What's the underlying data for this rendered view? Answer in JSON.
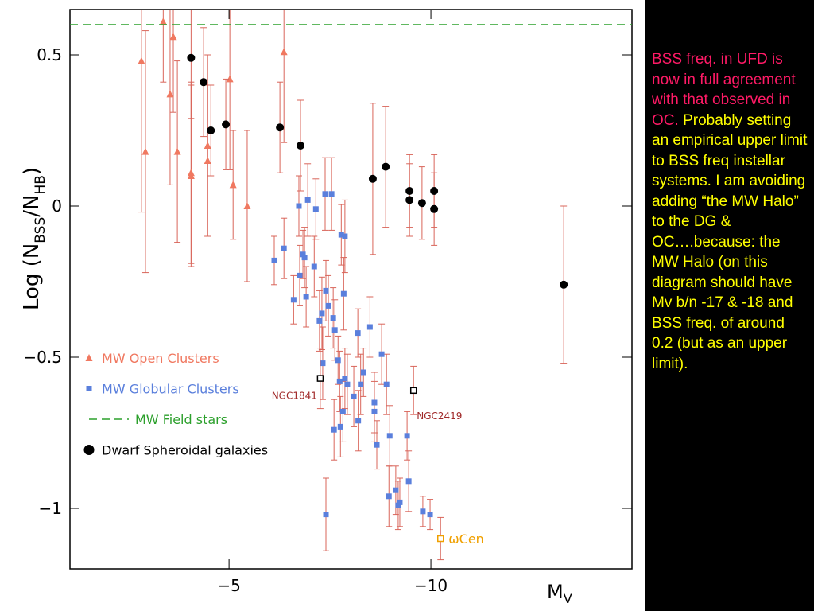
{
  "chart_data": {
    "type": "scatter",
    "xlabel": [
      "M",
      "V"
    ],
    "ylabel": [
      "Log  (N",
      "BSS",
      "/N",
      "HB",
      ")"
    ],
    "xlim": [
      -1.06,
      -14.98
    ],
    "ylim": [
      -1.2,
      0.65
    ],
    "xticks": [
      {
        "value": -5,
        "label": "−5"
      },
      {
        "value": -10,
        "label": "−10"
      }
    ],
    "yticks": [
      {
        "value": 0.5,
        "label": "0.5"
      },
      0,
      {
        "value": -0.5,
        "label": "−0.5"
      },
      {
        "value": -1,
        "label": "−1"
      }
    ],
    "legend": "lower left",
    "error_color": "#d9655a",
    "series": [
      {
        "name": "MW Open Clusters",
        "color": "#f07860",
        "marker": "triangle",
        "x": [
          -2.83,
          -2.93,
          -3.37,
          -3.62,
          -3.54,
          -3.72,
          -4.06,
          -4.06,
          -4.47,
          -4.47,
          -5.02,
          -5.1,
          -5.45,
          -6.36
        ],
        "values": [
          0.48,
          0.18,
          0.61,
          0.56,
          0.37,
          0.18,
          0.11,
          0.1,
          0.2,
          0.15,
          0.42,
          0.07,
          0.0,
          0.51
        ],
        "errors": [
          0.5,
          0.4,
          0.2,
          0.25,
          0.3,
          0.3,
          0.3,
          0.3,
          0.3,
          0.25,
          0.3,
          0.18,
          0.25,
          0.3
        ]
      },
      {
        "name": "MW Globular Clusters",
        "color": "#5a7fdc",
        "marker": "square",
        "x": [
          -6.12,
          -6.36,
          -6.6,
          -6.73,
          -6.75,
          -6.83,
          -6.87,
          -6.91,
          -6.95,
          -7.11,
          -7.15,
          -7.24,
          -7.3,
          -7.32,
          -7.38,
          -7.4,
          -7.46,
          -7.54,
          -7.58,
          -7.6,
          -7.62,
          -7.7,
          -7.74,
          -7.76,
          -7.78,
          -7.82,
          -7.84,
          -7.87,
          -7.87,
          -7.93,
          -7.4,
          -8.09,
          -8.19,
          -8.2,
          -8.26,
          -8.33,
          -8.49,
          -8.6,
          -8.6,
          -8.66,
          -8.78,
          -8.9,
          -8.96,
          -8.98,
          -9.13,
          -9.19,
          -9.23,
          -9.41,
          -9.45,
          -9.8,
          -9.98
        ],
        "values": [
          -0.18,
          -0.14,
          -0.31,
          0.0,
          -0.23,
          -0.16,
          -0.17,
          -0.3,
          0.02,
          -0.2,
          -0.01,
          -0.38,
          -0.355,
          -0.52,
          0.04,
          -0.28,
          -0.33,
          0.04,
          -0.37,
          -0.74,
          -0.41,
          -0.51,
          -0.58,
          -0.73,
          -0.095,
          -0.68,
          -0.29,
          -0.1,
          -0.57,
          -0.59,
          -1.02,
          -0.63,
          -0.42,
          -0.71,
          -0.59,
          -0.55,
          -0.4,
          -0.65,
          -0.68,
          -0.79,
          -0.49,
          -0.59,
          -0.96,
          -0.76,
          -0.94,
          -0.99,
          -0.98,
          -0.76,
          -0.91,
          -1.01,
          -1.02
        ],
        "errors": [
          0.08,
          0.1,
          0.08,
          0.1,
          0.1,
          0.08,
          0.1,
          0.1,
          0.12,
          0.1,
          0.1,
          0.1,
          0.12,
          0.12,
          0.12,
          0.1,
          0.1,
          0.12,
          0.1,
          0.1,
          0.1,
          0.08,
          0.1,
          0.1,
          0.1,
          0.1,
          0.12,
          0.12,
          0.1,
          0.1,
          0.12,
          0.1,
          0.08,
          0.1,
          0.1,
          0.08,
          0.1,
          0.1,
          0.1,
          0.08,
          0.1,
          0.1,
          0.1,
          0.1,
          0.08,
          0.08,
          0.08,
          0.08,
          0.1,
          0.05,
          0.05
        ]
      },
      {
        "name": "MW Field stars",
        "color": "#2ca02c",
        "marker": "hline",
        "values": [
          0.6
        ]
      },
      {
        "name": "Dwarf Spheroidal galaxies",
        "color": "#000000",
        "marker": "circle",
        "x": [
          -4.06,
          -4.37,
          -4.55,
          -4.92,
          -6.26,
          -6.77,
          -8.56,
          -8.88,
          -9.47,
          -9.47,
          -9.78,
          -10.08,
          -10.08,
          -13.29
        ],
        "values": [
          0.49,
          0.41,
          0.25,
          0.27,
          0.26,
          0.2,
          0.09,
          0.13,
          0.05,
          0.02,
          0.01,
          0.05,
          -0.01,
          -0.26
        ],
        "errors": [
          0.2,
          0.18,
          0.15,
          0.15,
          0.15,
          0.15,
          0.25,
          0.2,
          0.12,
          0.12,
          0.12,
          0.12,
          0.12,
          0.26
        ]
      }
    ],
    "annotations": [
      {
        "text": "NGC1841",
        "x": -7.26,
        "y": -0.57,
        "error": 0.1,
        "color": "#a02828",
        "marker_color": "#000000"
      },
      {
        "text": "NGC2419",
        "x": -9.57,
        "y": -0.61,
        "error": 0.08,
        "color": "#a02828",
        "marker_color": "#000000"
      },
      {
        "text": "ωCen",
        "x": -10.24,
        "y": -1.1,
        "error": 0.07,
        "color": "#f0a000",
        "marker_color": "#f0a000"
      }
    ]
  },
  "side_note": {
    "highlight": "BSS freq. in UFD is now in full agreement with that observed in  OC.",
    "body": "Probably setting an empirical upper limit to BSS freq instellar systems. I am avoiding adding “the MW Halo” to the DG & OC….because: the MW Halo (on this diagram should have Mv b/n -17 & -18 and BSS freq. of around 0.2 (but as an upper limit)."
  }
}
